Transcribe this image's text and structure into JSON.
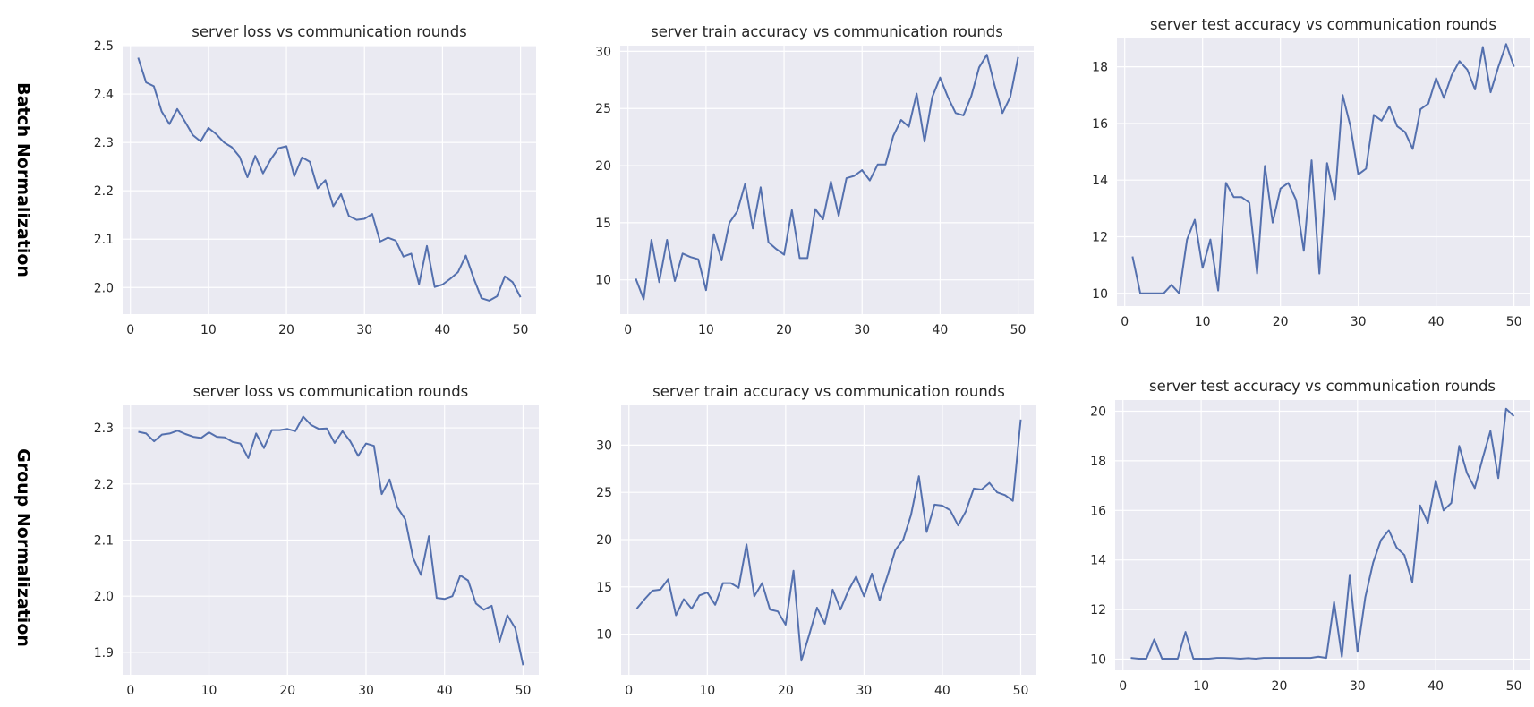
{
  "row_labels": [
    "Batch Normalization",
    "Group Normalization"
  ],
  "colors": {
    "background": "#eaeaf2",
    "grid": "#ffffff",
    "line": "#5470ae"
  },
  "chart_data": [
    {
      "type": "line",
      "row": 0,
      "col": 0,
      "title": "server loss vs communication rounds",
      "xlim": [
        -1,
        52
      ],
      "ylim": [
        1.945,
        2.5
      ],
      "xticks": [
        0,
        10,
        20,
        30,
        40,
        50
      ],
      "yticks": [
        2.0,
        2.1,
        2.2,
        2.3,
        2.4,
        2.5
      ],
      "ytick_labels": [
        "2.0",
        "2.1",
        "2.2",
        "2.3",
        "2.4",
        "2.5"
      ],
      "grid": true,
      "series": [
        {
          "x_start": 1,
          "values": [
            2.475,
            2.424,
            2.416,
            2.364,
            2.338,
            2.369,
            2.343,
            2.315,
            2.302,
            2.33,
            2.317,
            2.3,
            2.29,
            2.27,
            2.228,
            2.272,
            2.236,
            2.265,
            2.288,
            2.292,
            2.23,
            2.269,
            2.26,
            2.205,
            2.222,
            2.168,
            2.193,
            2.148,
            2.14,
            2.142,
            2.152,
            2.095,
            2.103,
            2.097,
            2.064,
            2.07,
            2.007,
            2.086,
            2.001,
            2.006,
            2.018,
            2.032,
            2.066,
            2.019,
            1.978,
            1.973,
            1.982,
            2.023,
            2.011,
            1.98
          ]
        }
      ]
    },
    {
      "type": "line",
      "row": 0,
      "col": 1,
      "title": "server train accuracy vs communication rounds",
      "xlim": [
        -1,
        52
      ],
      "ylim": [
        7,
        30.5
      ],
      "xticks": [
        0,
        10,
        20,
        30,
        40,
        50
      ],
      "yticks": [
        10,
        15,
        20,
        25,
        30
      ],
      "ytick_labels": [
        "10",
        "15",
        "20",
        "25",
        "30"
      ],
      "grid": true,
      "series": [
        {
          "x_start": 1,
          "values": [
            10.1,
            8.3,
            13.5,
            9.8,
            13.5,
            9.9,
            12.3,
            12.0,
            11.8,
            9.1,
            14.0,
            11.7,
            15.0,
            16.0,
            18.4,
            14.5,
            18.1,
            13.3,
            12.7,
            12.2,
            16.1,
            11.9,
            11.9,
            16.2,
            15.3,
            18.6,
            15.6,
            18.9,
            19.1,
            19.6,
            18.7,
            20.1,
            20.1,
            22.6,
            24.0,
            23.4,
            26.3,
            22.1,
            26.0,
            27.7,
            26.0,
            24.6,
            24.4,
            26.1,
            28.6,
            29.7,
            27.0,
            24.6,
            26.0,
            29.5
          ]
        }
      ]
    },
    {
      "type": "line",
      "row": 0,
      "col": 2,
      "title": "server test accuracy vs communication rounds",
      "xlim": [
        -1,
        52
      ],
      "ylim": [
        9.55,
        19.0
      ],
      "xticks": [
        0,
        10,
        20,
        30,
        40,
        50
      ],
      "yticks": [
        10,
        12,
        14,
        16,
        18
      ],
      "ytick_labels": [
        "10",
        "12",
        "14",
        "16",
        "18"
      ],
      "grid": true,
      "series": [
        {
          "x_start": 1,
          "values": [
            11.3,
            10.0,
            10.0,
            10.0,
            10.0,
            10.3,
            10.0,
            11.9,
            12.6,
            10.9,
            11.9,
            10.1,
            13.9,
            13.4,
            13.4,
            13.2,
            10.7,
            14.5,
            12.5,
            13.7,
            13.9,
            13.3,
            11.5,
            14.7,
            10.7,
            14.6,
            13.3,
            17.0,
            15.9,
            14.2,
            14.4,
            16.3,
            16.1,
            16.6,
            15.9,
            15.7,
            15.1,
            16.5,
            16.7,
            17.6,
            16.9,
            17.7,
            18.2,
            17.9,
            17.2,
            18.7,
            17.1,
            18.0,
            18.8,
            18.0
          ]
        }
      ]
    },
    {
      "type": "line",
      "row": 1,
      "col": 0,
      "title": "server loss vs communication rounds",
      "xlim": [
        -1,
        52
      ],
      "ylim": [
        1.86,
        2.34
      ],
      "xticks": [
        0,
        10,
        20,
        30,
        40,
        50
      ],
      "yticks": [
        1.9,
        2.0,
        2.1,
        2.2,
        2.3
      ],
      "ytick_labels": [
        "1.9",
        "2.0",
        "2.1",
        "2.2",
        "2.3"
      ],
      "grid": true,
      "series": [
        {
          "x_start": 1,
          "values": [
            2.293,
            2.29,
            2.276,
            2.288,
            2.29,
            2.295,
            2.289,
            2.284,
            2.282,
            2.292,
            2.284,
            2.283,
            2.275,
            2.272,
            2.246,
            2.29,
            2.264,
            2.296,
            2.296,
            2.298,
            2.294,
            2.32,
            2.305,
            2.298,
            2.299,
            2.273,
            2.294,
            2.276,
            2.25,
            2.272,
            2.268,
            2.182,
            2.208,
            2.158,
            2.137,
            2.068,
            2.038,
            2.107,
            1.997,
            1.995,
            2.0,
            2.037,
            2.028,
            1.987,
            1.976,
            1.983,
            1.919,
            1.966,
            1.943,
            1.877
          ]
        }
      ]
    },
    {
      "type": "line",
      "row": 1,
      "col": 1,
      "title": "server train accuracy vs communication rounds",
      "xlim": [
        -1,
        52
      ],
      "ylim": [
        5.7,
        34.2
      ],
      "xticks": [
        0,
        10,
        20,
        30,
        40,
        50
      ],
      "yticks": [
        10,
        15,
        20,
        25,
        30
      ],
      "ytick_labels": [
        "10",
        "15",
        "20",
        "25",
        "30"
      ],
      "grid": true,
      "series": [
        {
          "x_start": 1,
          "values": [
            12.7,
            13.7,
            14.6,
            14.7,
            15.8,
            12.0,
            13.7,
            12.7,
            14.1,
            14.4,
            13.1,
            15.4,
            15.4,
            14.9,
            19.5,
            14.0,
            15.4,
            12.6,
            12.4,
            11.0,
            16.7,
            7.2,
            9.9,
            12.8,
            11.1,
            14.7,
            12.6,
            14.6,
            16.1,
            14.0,
            16.4,
            13.6,
            16.2,
            18.9,
            20.0,
            22.6,
            26.7,
            20.8,
            23.7,
            23.6,
            23.1,
            21.5,
            23.0,
            25.4,
            25.3,
            26.0,
            25.0,
            24.7,
            24.1,
            32.7
          ]
        }
      ]
    },
    {
      "type": "line",
      "row": 1,
      "col": 2,
      "title": "server test accuracy vs communication rounds",
      "xlim": [
        -1,
        52
      ],
      "ylim": [
        9.55,
        20.45
      ],
      "xticks": [
        0,
        10,
        20,
        30,
        40,
        50
      ],
      "yticks": [
        10,
        12,
        14,
        16,
        18,
        20
      ],
      "ytick_labels": [
        "10",
        "12",
        "14",
        "16",
        "18",
        "20"
      ],
      "grid": true,
      "series": [
        {
          "x_start": 1,
          "values": [
            10.05,
            10.02,
            10.02,
            10.8,
            10.02,
            10.02,
            10.02,
            11.1,
            10.02,
            10.02,
            10.02,
            10.05,
            10.05,
            10.04,
            10.02,
            10.04,
            10.02,
            10.05,
            10.05,
            10.05,
            10.05,
            10.05,
            10.05,
            10.05,
            10.1,
            10.05,
            12.3,
            10.1,
            13.4,
            10.3,
            12.5,
            13.9,
            14.8,
            15.2,
            14.5,
            14.2,
            13.1,
            16.2,
            15.5,
            17.2,
            16.0,
            16.3,
            18.6,
            17.5,
            16.9,
            18.1,
            19.2,
            17.3,
            20.1,
            19.8
          ]
        }
      ]
    }
  ]
}
